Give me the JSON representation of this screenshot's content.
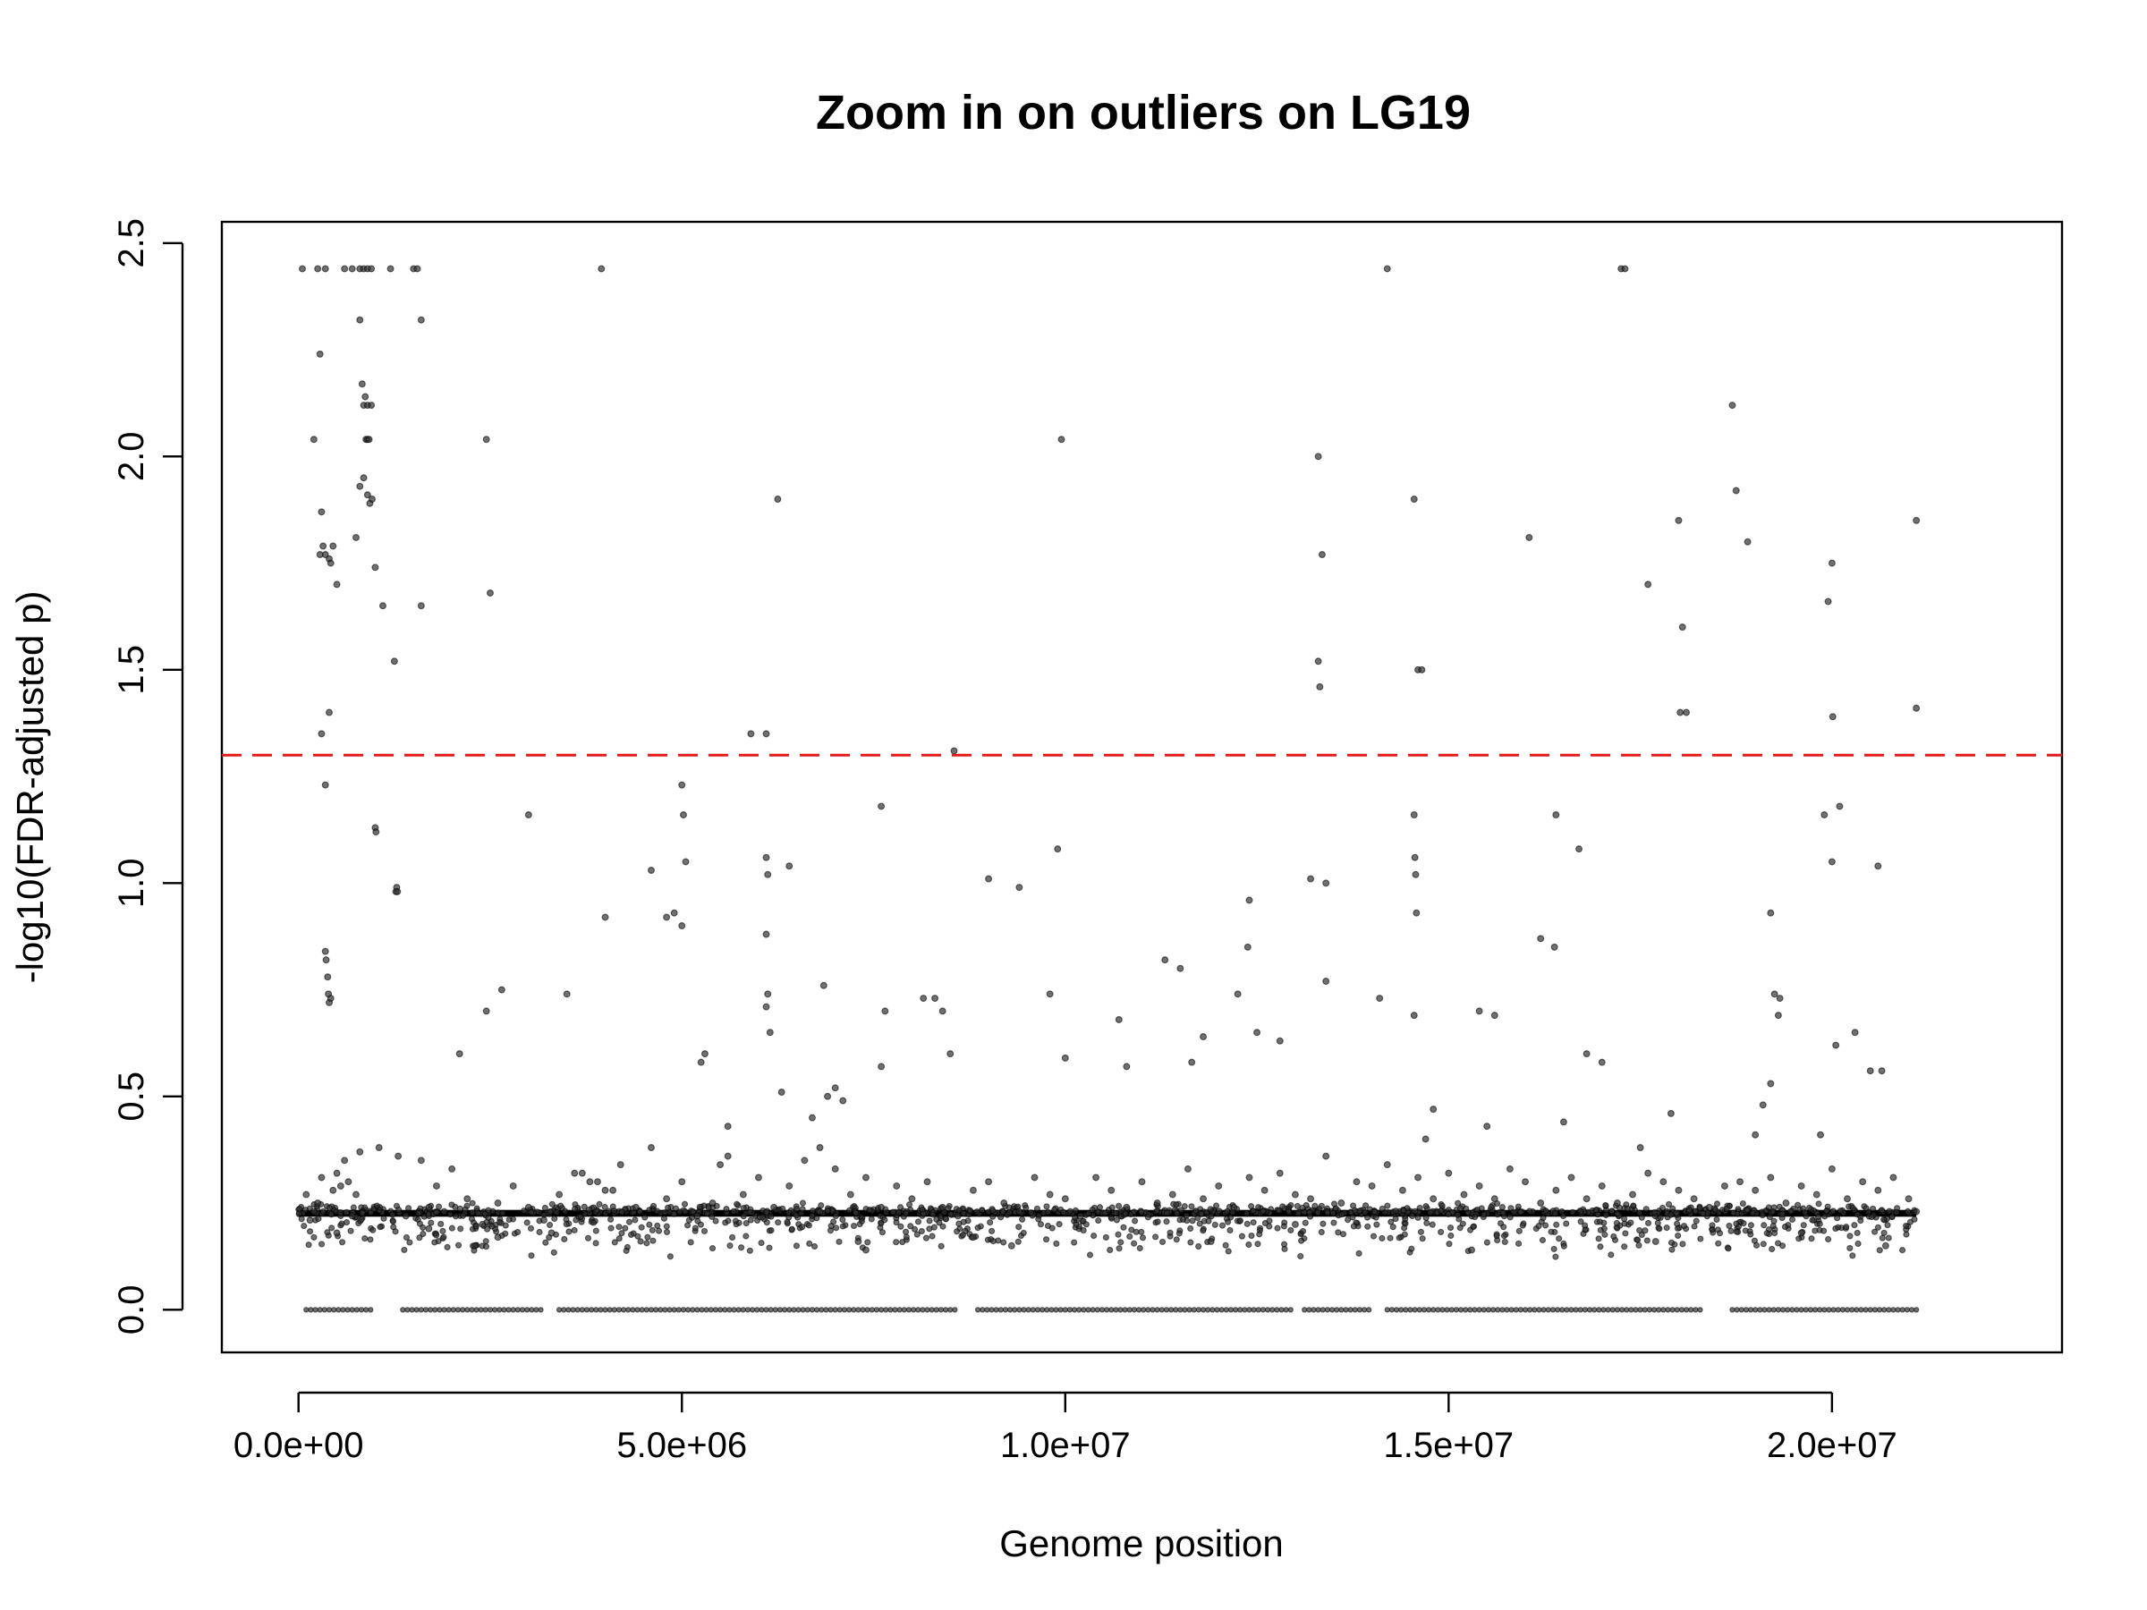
{
  "chart_data": {
    "type": "scatter",
    "title": "Zoom in on outliers on LG19",
    "xlabel": "Genome position",
    "ylabel": "-log10(FDR-adjusted p)",
    "xlim": [
      -1000000.0,
      23000000.0
    ],
    "ylim": [
      -0.1,
      2.55
    ],
    "xticks": [
      0,
      5000000,
      10000000,
      15000000,
      20000000
    ],
    "xtick_labels": [
      "0.0e+00",
      "5.0e+06",
      "1.0e+07",
      "1.5e+07",
      "2.0e+07"
    ],
    "yticks": [
      0,
      0.5,
      1,
      1.5,
      2,
      2.5
    ],
    "ytick_labels": [
      "0.0",
      "0.5",
      "1.0",
      "1.5",
      "2.0",
      "2.5"
    ],
    "threshold": {
      "y": 1.3,
      "color": "#e41a1c",
      "style": "dashed"
    },
    "point_color": "#333333",
    "grid": false,
    "series": [
      {
        "values_x": [
          50000,
          250000,
          350000,
          600000,
          700000,
          800000,
          850000,
          900000,
          950000,
          1200000,
          1500000,
          1550000,
          3950000,
          14200000,
          17250000,
          17300000,
          280000,
          1600000,
          800000,
          830000,
          850000,
          900000,
          950000,
          870000,
          880000,
          900000,
          920000,
          200000,
          2450000,
          9950000,
          13300000,
          18700000,
          300000,
          350000,
          400000,
          450000,
          500000,
          280000,
          320000,
          420000,
          750000,
          800000,
          850000,
          900000,
          930000,
          960000,
          1000000,
          1100000,
          1250000,
          1600000,
          2500000,
          6250000,
          13350000,
          14550000,
          16050000,
          17600000,
          18000000,
          18050000,
          18100000,
          18900000,
          18750000,
          19950000,
          20000000,
          21100000,
          13300000,
          13320000,
          14600000,
          14650000,
          18020000,
          21100000,
          20010000,
          5900000,
          6100000,
          8550000,
          300000,
          350000,
          400000,
          1000000,
          1010000,
          1270000,
          1280000,
          1290000,
          3000000,
          5000000,
          5020000,
          5050000,
          6100000,
          6120000,
          6400000,
          7600000,
          9900000,
          13200000,
          13400000,
          14550000,
          14560000,
          14570000,
          14580000,
          16400000,
          16700000,
          19900000,
          20000000,
          20100000,
          20600000,
          4000000,
          4600000,
          4800000,
          4900000,
          5000000,
          6100000,
          6120000,
          9000000,
          9400000,
          12400000,
          19200000,
          12380000,
          16200000,
          16380000,
          11300000,
          350000,
          360000,
          380000,
          390000,
          400000,
          420000,
          2450000,
          2650000,
          3500000,
          6100000,
          6150000,
          6850000,
          8150000,
          11500000,
          11800000,
          12250000,
          12800000,
          13400000,
          14100000,
          14550000,
          15400000,
          19300000,
          19320000,
          19250000,
          10700000,
          2100000,
          5250000,
          5300000,
          6900000,
          7650000,
          7600000,
          8300000,
          8400000,
          8500000,
          9800000,
          10000000,
          10800000,
          11650000,
          12500000,
          16800000,
          17000000,
          19100000,
          19200000,
          19850000,
          20050000,
          20300000,
          20500000,
          20650000,
          6300000,
          15600000,
          100000,
          150000,
          200000,
          250000,
          300000,
          450000,
          500000,
          550000,
          600000,
          650000,
          700000,
          750000,
          800000,
          1050000,
          1300000,
          1400000,
          1600000,
          1700000,
          1800000,
          1900000,
          2000000,
          2200000,
          2400000,
          2600000,
          2800000,
          3000000,
          3200000,
          3400000,
          3600000,
          3800000,
          4000000,
          4200000,
          4400000,
          4600000,
          4800000,
          5000000,
          5200000,
          5400000,
          5600000,
          5800000,
          6000000,
          6200000,
          6400000,
          6600000,
          6800000,
          7000000,
          7200000,
          7400000,
          7600000,
          7800000,
          8000000,
          8200000,
          8400000,
          8600000,
          8800000,
          9000000,
          9200000,
          9400000,
          9600000,
          9800000,
          10000000,
          10200000,
          10400000,
          10600000,
          10800000,
          11000000,
          11200000,
          11400000,
          11600000,
          11800000,
          12000000,
          12200000,
          12400000,
          12600000,
          12800000,
          13000000,
          13200000,
          13400000,
          13600000,
          13800000,
          14000000,
          14200000,
          14400000,
          14600000,
          14800000,
          15000000,
          15200000,
          15400000,
          15600000,
          15800000,
          16000000,
          16200000,
          16400000,
          16600000,
          16800000,
          17000000,
          17200000,
          17400000,
          17600000,
          17800000,
          18000000,
          18200000,
          18400000,
          18600000,
          18800000,
          19000000,
          19200000,
          19400000,
          19600000,
          19800000,
          20000000,
          20200000,
          20400000,
          20600000,
          20800000,
          21000000,
          21100000,
          3700000,
          3900000,
          4100000,
          5500000,
          5600000,
          6700000,
          6800000,
          7000000,
          7100000,
          14700000,
          14800000,
          15500000,
          16500000,
          17500000,
          17900000,
          19000000,
          500000,
          1700000,
          2300000,
          7300000,
          7400000,
          8800000,
          9300000,
          13000000,
          15300000,
          17700000,
          19600000,
          20700000,
          2600000,
          11900000,
          3300000
        ],
        "values_y": [
          2.44,
          2.44,
          2.44,
          2.44,
          2.44,
          2.44,
          2.44,
          2.44,
          2.44,
          2.44,
          2.44,
          2.44,
          2.44,
          2.44,
          2.44,
          2.44,
          2.24,
          2.32,
          2.32,
          2.17,
          2.12,
          2.12,
          2.12,
          2.14,
          2.04,
          2.04,
          2.04,
          2.04,
          2.04,
          2.04,
          2.0,
          2.12,
          1.87,
          1.77,
          1.76,
          1.79,
          1.7,
          1.77,
          1.79,
          1.75,
          1.81,
          1.93,
          1.95,
          1.91,
          1.89,
          1.9,
          1.74,
          1.65,
          1.52,
          1.65,
          1.68,
          1.9,
          1.77,
          1.9,
          1.81,
          1.7,
          1.85,
          1.6,
          1.4,
          1.8,
          1.92,
          1.66,
          1.75,
          1.85,
          1.52,
          1.46,
          1.5,
          1.5,
          1.4,
          1.41,
          1.39,
          1.35,
          1.35,
          1.31,
          1.35,
          1.23,
          1.4,
          1.13,
          1.12,
          0.98,
          0.99,
          0.98,
          1.16,
          1.23,
          1.16,
          1.05,
          1.06,
          1.02,
          1.04,
          1.18,
          1.08,
          1.01,
          1.0,
          1.16,
          1.06,
          1.02,
          0.93,
          1.16,
          1.08,
          1.16,
          1.05,
          1.18,
          1.04,
          0.92,
          1.03,
          0.92,
          0.93,
          0.9,
          0.88,
          0.74,
          1.01,
          0.99,
          0.96,
          0.93,
          0.85,
          0.87,
          0.85,
          0.82,
          0.84,
          0.82,
          0.78,
          0.74,
          0.72,
          0.73,
          0.7,
          0.75,
          0.74,
          0.71,
          0.65,
          0.76,
          0.73,
          0.8,
          0.64,
          0.74,
          0.63,
          0.77,
          0.73,
          0.69,
          0.7,
          0.69,
          0.73,
          0.74,
          0.68,
          0.6,
          0.58,
          0.6,
          0.5,
          0.7,
          0.57,
          0.73,
          0.7,
          0.6,
          0.74,
          0.59,
          0.57,
          0.58,
          0.65,
          0.6,
          0.58,
          0.48,
          0.53,
          0.41,
          0.62,
          0.65,
          0.56,
          0.56,
          0.51,
          0.69,
          0.27,
          0.21,
          0.23,
          0.25,
          0.31,
          0.28,
          0.32,
          0.29,
          0.35,
          0.3,
          0.22,
          0.27,
          0.37,
          0.38,
          0.36,
          0.22,
          0.35,
          0.24,
          0.29,
          0.23,
          0.33,
          0.26,
          0.2,
          0.25,
          0.29,
          0.24,
          0.21,
          0.27,
          0.32,
          0.3,
          0.28,
          0.34,
          0.24,
          0.38,
          0.26,
          0.3,
          0.22,
          0.25,
          0.36,
          0.27,
          0.31,
          0.24,
          0.29,
          0.35,
          0.23,
          0.33,
          0.27,
          0.31,
          0.24,
          0.29,
          0.26,
          0.3,
          0.24,
          0.22,
          0.28,
          0.3,
          0.25,
          0.23,
          0.31,
          0.27,
          0.26,
          0.22,
          0.31,
          0.28,
          0.24,
          0.3,
          0.25,
          0.27,
          0.33,
          0.26,
          0.29,
          0.24,
          0.31,
          0.28,
          0.32,
          0.27,
          0.26,
          0.36,
          0.25,
          0.3,
          0.29,
          0.34,
          0.28,
          0.31,
          0.26,
          0.32,
          0.27,
          0.29,
          0.26,
          0.33,
          0.3,
          0.25,
          0.28,
          0.31,
          0.26,
          0.29,
          0.25,
          0.27,
          0.32,
          0.3,
          0.28,
          0.26,
          0.24,
          0.29,
          0.3,
          0.28,
          0.31,
          0.25,
          0.29,
          0.27,
          0.33,
          0.26,
          0.3,
          0.28,
          0.31,
          0.26,
          0.23,
          0.32,
          0.3,
          0.28,
          0.34,
          0.43,
          0.45,
          0.38,
          0.52,
          0.49,
          0.4,
          0.47,
          0.43,
          0.44,
          0.38,
          0.46,
          0.41,
          0.18,
          0.19,
          0.15,
          0.16,
          0.14,
          0.17,
          0.15,
          0.2,
          0.14,
          0.16,
          0.18,
          0.15,
          0.17,
          0.16,
          0.18
        ]
      }
    ]
  }
}
